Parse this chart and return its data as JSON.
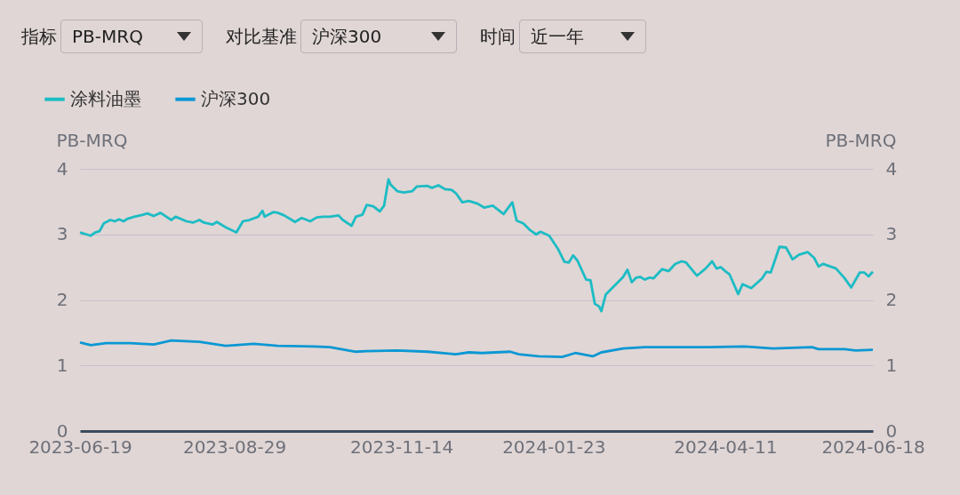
{
  "chart_data": {
    "type": "line",
    "xlabel": null,
    "ylabel": "PB-MRQ",
    "y2label": "PB-MRQ",
    "annotations": [
      "指标",
      "PB-MRQ",
      "对比基准",
      "沪深300",
      "时间",
      "近一年"
    ],
    "xlim": [
      "2023-06-19",
      "2024-06-18"
    ],
    "xticks": [
      "2023-06-19",
      "2023-08-29",
      "2023-11-14",
      "2024-01-23",
      "2024-04-11",
      "2024-06-18"
    ],
    "ylim": [
      0,
      4
    ],
    "yticks": [
      0,
      1,
      2,
      3,
      4
    ],
    "y2lim": [
      0,
      4
    ],
    "y2ticks": [
      0,
      1,
      2,
      3,
      4
    ],
    "grid": "y",
    "legend": "top left",
    "series": [
      {
        "name": "涂料油墨",
        "color": "#1dbcc4",
        "x": [
          "2023-06-19",
          "2023-06-24",
          "2023-06-26",
          "2023-06-28",
          "2023-06-30",
          "2023-07-03",
          "2023-07-05",
          "2023-07-07",
          "2023-07-09",
          "2023-07-11",
          "2023-07-14",
          "2023-07-18",
          "2023-07-20",
          "2023-07-23",
          "2023-07-26",
          "2023-07-31",
          "2023-08-02",
          "2023-08-07",
          "2023-08-10",
          "2023-08-13",
          "2023-08-15",
          "2023-08-19",
          "2023-08-21",
          "2023-08-25",
          "2023-08-30",
          "2023-09-02",
          "2023-09-05",
          "2023-09-09",
          "2023-09-11",
          "2023-09-12",
          "2023-09-16",
          "2023-09-18",
          "2023-09-21",
          "2023-09-26",
          "2023-09-29",
          "2023-10-03",
          "2023-10-06",
          "2023-10-09",
          "2023-10-12",
          "2023-10-16",
          "2023-10-18",
          "2023-10-22",
          "2023-10-24",
          "2023-10-27",
          "2023-10-29",
          "2023-11-01",
          "2023-11-04",
          "2023-11-06",
          "2023-11-08",
          "2023-11-09",
          "2023-11-12",
          "2023-11-15",
          "2023-11-19",
          "2023-11-21",
          "2023-11-26",
          "2023-11-28",
          "2023-12-01",
          "2023-12-04",
          "2023-12-07",
          "2023-12-09",
          "2023-12-12",
          "2023-12-15",
          "2023-12-19",
          "2023-12-22",
          "2023-12-26",
          "2023-12-31",
          "2024-01-04",
          "2024-01-06",
          "2024-01-09",
          "2024-01-12",
          "2024-01-15",
          "2024-01-17",
          "2024-01-21",
          "2024-01-25",
          "2024-01-28",
          "2024-01-30",
          "2024-02-01",
          "2024-02-03",
          "2024-02-07",
          "2024-02-09",
          "2024-02-11",
          "2024-02-13",
          "2024-02-14",
          "2024-02-16",
          "2024-02-24",
          "2024-02-26",
          "2024-02-28",
          "2024-03-01",
          "2024-03-03",
          "2024-03-05",
          "2024-03-07",
          "2024-03-09",
          "2024-03-13",
          "2024-03-16",
          "2024-03-19",
          "2024-03-22",
          "2024-03-24",
          "2024-03-27",
          "2024-03-29",
          "2024-04-02",
          "2024-04-05",
          "2024-04-07",
          "2024-04-09",
          "2024-04-11",
          "2024-04-13",
          "2024-04-17",
          "2024-04-19",
          "2024-04-23",
          "2024-04-28",
          "2024-04-30",
          "2024-05-02",
          "2024-05-06",
          "2024-05-09",
          "2024-05-12",
          "2024-05-15",
          "2024-05-19",
          "2024-05-22",
          "2024-05-24",
          "2024-05-26",
          "2024-06-01",
          "2024-06-05",
          "2024-06-08",
          "2024-06-12",
          "2024-06-14",
          "2024-06-16",
          "2024-06-18"
        ],
        "values": [
          3.03,
          2.98,
          3.03,
          3.05,
          3.17,
          3.22,
          3.2,
          3.23,
          3.2,
          3.24,
          3.27,
          3.3,
          3.32,
          3.28,
          3.33,
          3.22,
          3.27,
          3.2,
          3.18,
          3.22,
          3.18,
          3.15,
          3.19,
          3.11,
          3.03,
          3.2,
          3.22,
          3.27,
          3.36,
          3.27,
          3.34,
          3.33,
          3.29,
          3.19,
          3.25,
          3.2,
          3.26,
          3.27,
          3.27,
          3.29,
          3.22,
          3.13,
          3.27,
          3.3,
          3.45,
          3.43,
          3.35,
          3.44,
          3.84,
          3.76,
          3.66,
          3.64,
          3.66,
          3.73,
          3.74,
          3.71,
          3.75,
          3.69,
          3.68,
          3.63,
          3.49,
          3.51,
          3.47,
          3.41,
          3.44,
          3.31,
          3.49,
          3.21,
          3.17,
          3.07,
          3.0,
          3.04,
          2.98,
          2.78,
          2.58,
          2.57,
          2.68,
          2.6,
          2.31,
          2.3,
          1.94,
          1.9,
          1.83,
          2.08,
          2.35,
          2.46,
          2.27,
          2.34,
          2.35,
          2.31,
          2.34,
          2.33,
          2.47,
          2.44,
          2.55,
          2.59,
          2.57,
          2.45,
          2.37,
          2.48,
          2.59,
          2.48,
          2.5,
          2.44,
          2.39,
          2.09,
          2.24,
          2.18,
          2.33,
          2.43,
          2.42,
          2.81,
          2.8,
          2.62,
          2.69,
          2.73,
          2.64,
          2.51,
          2.55,
          2.48,
          2.33,
          2.19,
          2.42,
          2.42,
          2.36,
          2.43
        ]
      },
      {
        "name": "沪深300",
        "color": "#0c98d4",
        "axis": "y2",
        "x": [
          "2023-06-19",
          "2023-06-24",
          "2023-07-01",
          "2023-07-12",
          "2023-07-23",
          "2023-07-31",
          "2023-08-13",
          "2023-08-25",
          "2023-09-07",
          "2023-09-18",
          "2023-10-05",
          "2023-10-12",
          "2023-10-24",
          "2023-10-29",
          "2023-11-12",
          "2023-11-26",
          "2023-12-09",
          "2023-12-15",
          "2023-12-21",
          "2024-01-03",
          "2024-01-07",
          "2024-01-16",
          "2024-01-27",
          "2024-02-02",
          "2024-02-10",
          "2024-02-14",
          "2024-02-24",
          "2024-03-05",
          "2024-03-19",
          "2024-04-03",
          "2024-04-20",
          "2024-05-03",
          "2024-05-21",
          "2024-05-24",
          "2024-06-05",
          "2024-06-10",
          "2024-06-18"
        ],
        "values": [
          1.35,
          1.31,
          1.34,
          1.34,
          1.32,
          1.38,
          1.36,
          1.3,
          1.33,
          1.3,
          1.29,
          1.28,
          1.21,
          1.22,
          1.23,
          1.21,
          1.17,
          1.2,
          1.19,
          1.21,
          1.17,
          1.14,
          1.13,
          1.19,
          1.14,
          1.2,
          1.26,
          1.28,
          1.28,
          1.28,
          1.29,
          1.26,
          1.28,
          1.25,
          1.25,
          1.23,
          1.24
        ]
      }
    ]
  }
}
